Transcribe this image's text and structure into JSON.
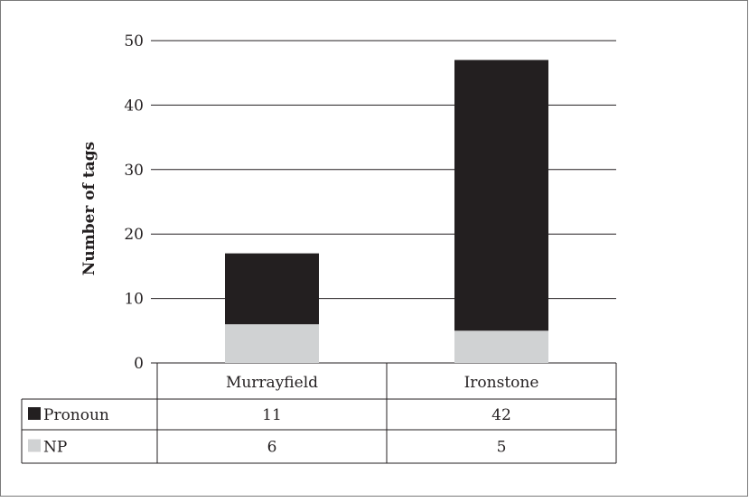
{
  "chart_data": {
    "type": "bar",
    "stacked": true,
    "ylabel": "Number of tags",
    "ylim": [
      0,
      50
    ],
    "yticks": [
      0,
      10,
      20,
      30,
      40,
      50
    ],
    "categories": [
      "Murrayfield",
      "Ironstone"
    ],
    "series": [
      {
        "name": "NP",
        "values": [
          6,
          5
        ],
        "color": "#d0d2d3"
      },
      {
        "name": "Pronoun",
        "values": [
          11,
          42
        ],
        "color": "#231f20"
      }
    ],
    "legend_placement": "data-table-left",
    "grid": true
  }
}
